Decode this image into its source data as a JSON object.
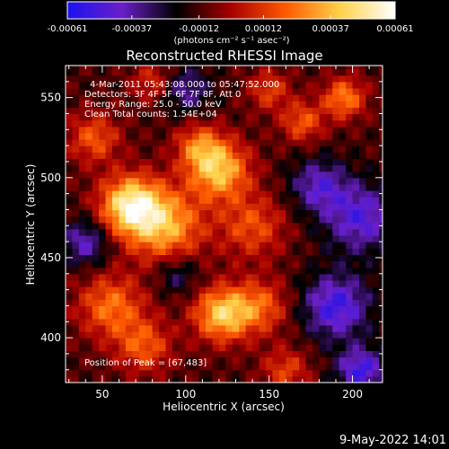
{
  "chart_data": {
    "type": "heatmap",
    "title": "Reconstructed RHESSI Image",
    "xlabel": "Heliocentric X (arcsec)",
    "ylabel": "Heliocentric Y (arcsec)",
    "xlim": [
      28,
      218
    ],
    "ylim": [
      372,
      570
    ],
    "xticks": [
      50,
      100,
      150,
      200
    ],
    "yticks": [
      400,
      450,
      500,
      550
    ],
    "colorbar": {
      "ticks": [
        "-0.00061",
        "-0.00037",
        "-0.00012",
        "0.00012",
        "0.00037",
        "0.00061"
      ],
      "tick_values": [
        -0.00061,
        -0.00037,
        -0.00012,
        0.00012,
        0.00037,
        0.00061
      ],
      "range": [
        -0.00061,
        0.00061
      ],
      "units_label": "(photons cm⁻² s⁻¹ asec⁻²)",
      "colors": [
        "#1a12f0",
        "#6a1fc8",
        "#000000",
        "#a80000",
        "#ff5a00",
        "#ffd24a",
        "#ffffff"
      ]
    },
    "annotations": [
      "4-Mar-2011 05:43:08.000 to 05:47:52.000",
      "Detectors: 3F 4F 5F 6F 7F 8F, Att 0",
      "Energy Range: 25.0 - 50.0 keV",
      "Clean     Total counts: 1.54E+04"
    ],
    "peak_label": "Position of Peak = [67,483]",
    "peak": [
      67,
      483
    ],
    "sources": [
      {
        "x": 67,
        "y": 483,
        "amp": 0.00061,
        "sigma": 13
      },
      {
        "x": 88,
        "y": 470,
        "amp": 0.00045,
        "sigma": 16
      },
      {
        "x": 120,
        "y": 505,
        "amp": 0.0005,
        "sigma": 13
      },
      {
        "x": 108,
        "y": 520,
        "amp": 0.0003,
        "sigma": 10
      },
      {
        "x": 122,
        "y": 415,
        "amp": 0.00052,
        "sigma": 12
      },
      {
        "x": 145,
        "y": 420,
        "amp": 0.0003,
        "sigma": 12
      },
      {
        "x": 55,
        "y": 420,
        "amp": 0.00035,
        "sigma": 14
      },
      {
        "x": 75,
        "y": 395,
        "amp": 0.0003,
        "sigma": 12
      },
      {
        "x": 140,
        "y": 470,
        "amp": 0.00028,
        "sigma": 14
      },
      {
        "x": 45,
        "y": 525,
        "amp": 0.0003,
        "sigma": 11
      },
      {
        "x": 80,
        "y": 560,
        "amp": 0.00022,
        "sigma": 9
      },
      {
        "x": 195,
        "y": 550,
        "amp": 0.00038,
        "sigma": 9
      },
      {
        "x": 170,
        "y": 535,
        "amp": 0.0003,
        "sigma": 9
      },
      {
        "x": 150,
        "y": 555,
        "amp": 0.00025,
        "sigma": 9
      },
      {
        "x": 160,
        "y": 380,
        "amp": 0.00025,
        "sigma": 10
      },
      {
        "x": 205,
        "y": 475,
        "amp": -0.00035,
        "sigma": 15
      },
      {
        "x": 190,
        "y": 420,
        "amp": -0.0004,
        "sigma": 14
      },
      {
        "x": 180,
        "y": 495,
        "amp": -0.0003,
        "sigma": 12
      },
      {
        "x": 100,
        "y": 555,
        "amp": -0.00025,
        "sigma": 10
      },
      {
        "x": 40,
        "y": 460,
        "amp": -0.0003,
        "sigma": 10
      },
      {
        "x": 95,
        "y": 440,
        "amp": -0.0002,
        "sigma": 9
      },
      {
        "x": 205,
        "y": 380,
        "amp": -0.0004,
        "sigma": 10
      }
    ]
  },
  "footer_date": "9-May-2022 14:01"
}
